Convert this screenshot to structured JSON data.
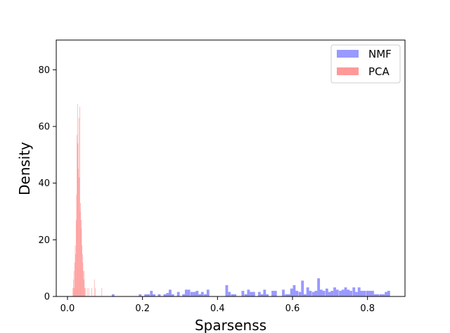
{
  "chart_data": {
    "type": "histogram",
    "xlabel": "Sparsenss",
    "ylabel": "Density",
    "xlim": [
      -0.03,
      0.9
    ],
    "ylim": [
      0,
      90.5
    ],
    "xticks": [
      0.0,
      0.2,
      0.4,
      0.6,
      0.8
    ],
    "yticks": [
      0,
      20,
      40,
      60,
      80
    ],
    "grid": false,
    "legend_position": "top-right",
    "series": [
      {
        "name": "NMF",
        "color": "#9999ff",
        "bin_width": 0.0072,
        "bins": [
          [
            0.118,
            0.8
          ],
          [
            0.19,
            0.8
          ],
          [
            0.205,
            0.8
          ],
          [
            0.212,
            0.8
          ],
          [
            0.22,
            2.0
          ],
          [
            0.227,
            0.8
          ],
          [
            0.241,
            0.8
          ],
          [
            0.256,
            0.8
          ],
          [
            0.263,
            1.2
          ],
          [
            0.27,
            2.4
          ],
          [
            0.277,
            0.8
          ],
          [
            0.292,
            1.6
          ],
          [
            0.306,
            0.8
          ],
          [
            0.313,
            2.4
          ],
          [
            0.32,
            2.4
          ],
          [
            0.328,
            1.6
          ],
          [
            0.335,
            1.6
          ],
          [
            0.342,
            2.0
          ],
          [
            0.349,
            0.8
          ],
          [
            0.356,
            1.6
          ],
          [
            0.364,
            0.8
          ],
          [
            0.371,
            2.4
          ],
          [
            0.421,
            4.0
          ],
          [
            0.428,
            1.6
          ],
          [
            0.436,
            0.8
          ],
          [
            0.443,
            0.8
          ],
          [
            0.464,
            2.0
          ],
          [
            0.472,
            0.8
          ],
          [
            0.479,
            2.4
          ],
          [
            0.486,
            1.6
          ],
          [
            0.493,
            1.6
          ],
          [
            0.508,
            1.6
          ],
          [
            0.515,
            0.8
          ],
          [
            0.522,
            2.4
          ],
          [
            0.529,
            0.8
          ],
          [
            0.544,
            2.0
          ],
          [
            0.551,
            2.0
          ],
          [
            0.572,
            2.4
          ],
          [
            0.58,
            0.8
          ],
          [
            0.587,
            0.8
          ],
          [
            0.594,
            2.8
          ],
          [
            0.601,
            4.0
          ],
          [
            0.608,
            2.0
          ],
          [
            0.616,
            1.6
          ],
          [
            0.623,
            5.6
          ],
          [
            0.63,
            0.8
          ],
          [
            0.637,
            3.2
          ],
          [
            0.644,
            2.0
          ],
          [
            0.652,
            1.6
          ],
          [
            0.659,
            2.0
          ],
          [
            0.666,
            6.4
          ],
          [
            0.673,
            2.4
          ],
          [
            0.68,
            2.0
          ],
          [
            0.688,
            2.8
          ],
          [
            0.695,
            1.6
          ],
          [
            0.702,
            2.0
          ],
          [
            0.709,
            3.2
          ],
          [
            0.716,
            2.4
          ],
          [
            0.724,
            2.0
          ],
          [
            0.731,
            2.4
          ],
          [
            0.738,
            3.2
          ],
          [
            0.745,
            2.4
          ],
          [
            0.752,
            2.0
          ],
          [
            0.76,
            3.2
          ],
          [
            0.767,
            1.6
          ],
          [
            0.774,
            3.2
          ],
          [
            0.781,
            2.0
          ],
          [
            0.788,
            2.0
          ],
          [
            0.796,
            2.0
          ],
          [
            0.803,
            2.0
          ],
          [
            0.81,
            2.0
          ],
          [
            0.817,
            0.8
          ],
          [
            0.824,
            0.8
          ],
          [
            0.832,
            0.8
          ],
          [
            0.839,
            0.8
          ],
          [
            0.846,
            1.6
          ],
          [
            0.853,
            2.0
          ]
        ]
      },
      {
        "name": "PCA",
        "color": "#ff9999",
        "bin_width": 0.0012,
        "bins": [
          [
            0.014,
            3.0
          ],
          [
            0.0152,
            6.0
          ],
          [
            0.0164,
            9.0
          ],
          [
            0.0176,
            3.0
          ],
          [
            0.0188,
            12.0
          ],
          [
            0.02,
            18.0
          ],
          [
            0.0212,
            15.0
          ],
          [
            0.0224,
            27.0
          ],
          [
            0.0236,
            36.0
          ],
          [
            0.0248,
            57.0
          ],
          [
            0.026,
            68.0
          ],
          [
            0.0272,
            54.0
          ],
          [
            0.0284,
            45.0
          ],
          [
            0.0296,
            63.0
          ],
          [
            0.0308,
            42.0
          ],
          [
            0.032,
            67.0
          ],
          [
            0.0332,
            30.0
          ],
          [
            0.0344,
            33.0
          ],
          [
            0.0356,
            27.0
          ],
          [
            0.0368,
            24.0
          ],
          [
            0.038,
            18.0
          ],
          [
            0.0392,
            15.0
          ],
          [
            0.0404,
            12.0
          ],
          [
            0.0416,
            9.0
          ],
          [
            0.0428,
            6.0
          ],
          [
            0.044,
            9.0
          ],
          [
            0.0452,
            3.0
          ],
          [
            0.0476,
            3.0
          ],
          [
            0.052,
            3.0
          ],
          [
            0.056,
            3.0
          ],
          [
            0.064,
            3.0
          ],
          [
            0.071,
            6.0
          ],
          [
            0.074,
            3.0
          ],
          [
            0.091,
            3.0
          ]
        ]
      }
    ]
  }
}
